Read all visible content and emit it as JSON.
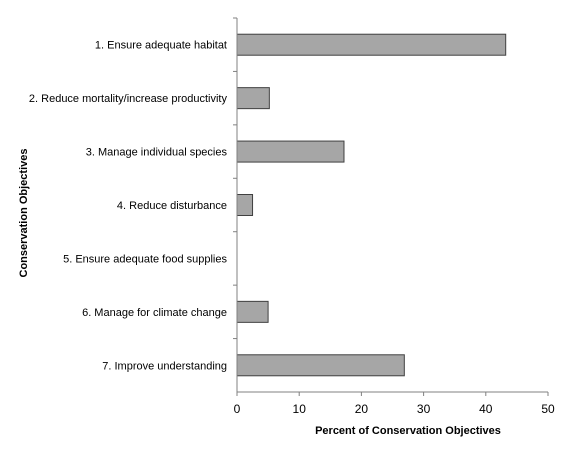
{
  "chart_data": {
    "type": "bar",
    "orientation": "horizontal",
    "title": "",
    "xlabel": "Percent of Conservation  Objectives",
    "ylabel": "Conservation Objectives",
    "categories": [
      "1. Ensure adequate habitat",
      "2. Reduce mortality/increase productivity",
      "3. Manage individual species",
      "4. Reduce disturbance",
      "5. Ensure adequate food supplies",
      "6. Manage for climate change",
      "7. Improve understanding"
    ],
    "values": [
      43.2,
      5.2,
      17.2,
      2.5,
      0,
      5.0,
      26.9
    ],
    "xlim": [
      0,
      50
    ],
    "xticks": [
      "0",
      "10",
      "20",
      "30",
      "40",
      "50"
    ],
    "grid": false,
    "legend": "none",
    "bar_color": "#a6a6a6",
    "bar_edge_color": "#404040"
  }
}
